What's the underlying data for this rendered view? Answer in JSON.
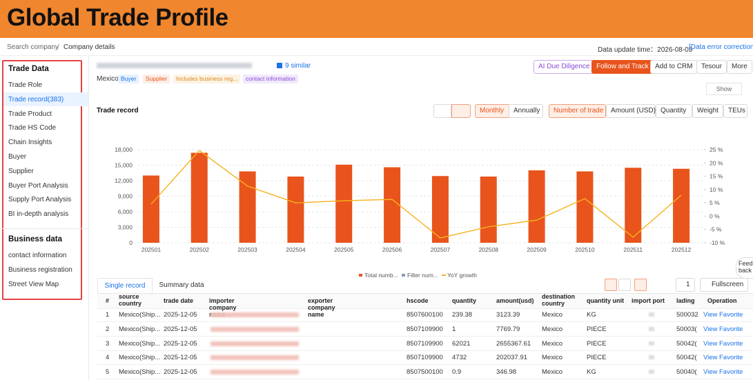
{
  "header": {
    "title": "Global Trade Profile"
  },
  "breadcrumb": [
    "Search company",
    "/",
    "Company details"
  ],
  "update": {
    "label": "Data update time：2026-08-05",
    "link": "[Data error correction]"
  },
  "sidebar": {
    "sections": [
      {
        "title": "Trade Data",
        "items": [
          "Trade Role",
          "Trade record(383)",
          "Trade Product",
          "Trade HS Code",
          "Chain Insights",
          "Buyer",
          "Supplier",
          "Buyer Port Analysis",
          "Supply Port Analysis",
          "BI in-depth analysis"
        ]
      },
      {
        "title": "Business data",
        "items": [
          "contact information",
          "Business registration",
          "Street View Map"
        ]
      }
    ]
  },
  "company": {
    "similar": "9 similar",
    "country": "Mexico",
    "tags": [
      "Buyer",
      "Supplier",
      "Includes business reg...",
      "contact information"
    ]
  },
  "actions": [
    "AI Due Diligence",
    "Follow and Track",
    "Add to CRM",
    "Tesour",
    "More"
  ],
  "show": "Show",
  "section_title": "Trade record",
  "period_toggle": [
    "Monthly",
    "Annually"
  ],
  "metric_toggle": [
    "Number of trade",
    "Amount (USD)",
    "Quantity",
    "Weight",
    "TEUs"
  ],
  "chart_data": {
    "type": "bar_line",
    "categories": [
      "202501",
      "202502",
      "202503",
      "202504",
      "202505",
      "202506",
      "202507",
      "202508",
      "202509",
      "202510",
      "202511",
      "202512"
    ],
    "series": [
      {
        "name": "Total numb...",
        "color": "#e8541c",
        "type": "bar",
        "values": [
          13000,
          17400,
          13800,
          12800,
          15100,
          14600,
          12900,
          12800,
          14000,
          13800,
          14500,
          14300
        ]
      },
      {
        "name": "Filter num...",
        "color": "#8a9bb5",
        "type": "bar",
        "values": [
          null,
          null,
          null,
          null,
          null,
          null,
          null,
          null,
          null,
          null,
          null,
          null
        ]
      },
      {
        "name": "YoY growth",
        "color": "#f5b21c",
        "type": "line",
        "axis": "y2",
        "values": [
          4.5,
          24.7,
          11.3,
          5,
          5.8,
          6.3,
          -8.2,
          -4,
          -1.5,
          6.6,
          -7.9,
          7.9
        ]
      }
    ],
    "ylim": [
      0,
      18000
    ],
    "yticks": [
      0,
      {
        "value": 3000,
        "label": "3,000"
      },
      {
        "value": 6000,
        "label": "6,000"
      },
      {
        "value": 9000,
        "label": "9,000"
      },
      {
        "value": 12000,
        "label": "12,000"
      },
      {
        "value": 15000,
        "label": "15,000"
      },
      {
        "value": 18000,
        "label": "18,000"
      }
    ],
    "y2lim": [
      -10,
      25
    ],
    "y2ticks": [
      {
        "value": -10,
        "label": "-10 %"
      },
      {
        "value": -5,
        "label": "-5 %"
      },
      {
        "value": 0,
        "label": "0 %"
      },
      {
        "value": 5,
        "label": "5 %"
      },
      {
        "value": 10,
        "label": "10 %"
      },
      {
        "value": 15,
        "label": "15 %"
      },
      {
        "value": 20,
        "label": "20 %"
      },
      {
        "value": 25,
        "label": "25 %"
      }
    ],
    "grid": true
  },
  "tabs": [
    "Single record",
    "Summary data"
  ],
  "table_tools": {
    "columns_count": "1",
    "fullscreen": "Fullscreen"
  },
  "feedback": "Feed back",
  "table": {
    "columns": [
      "#",
      "source country",
      "trade date",
      "importer company name",
      "exporter company name",
      "hscode",
      "quantity",
      "amount(usd)",
      "destination country",
      "quantity unit",
      "import port",
      "lading",
      "Operation"
    ],
    "rows": [
      [
        "1",
        "Mexico(Ship...",
        "2025-12-05",
        "8507600100",
        "239.38",
        "3123.39",
        "Mexico",
        "KG",
        "500032"
      ],
      [
        "2",
        "Mexico(Ship...",
        "2025-12-05",
        "8507109900",
        "1",
        "7769.79",
        "Mexico",
        "PIECE",
        "50003("
      ],
      [
        "3",
        "Mexico(Ship...",
        "2025-12-05",
        "8507109900",
        "62021",
        "2655367.61",
        "Mexico",
        "PIECE",
        "50042("
      ],
      [
        "4",
        "Mexico(Ship...",
        "2025-12-05",
        "8507109900",
        "4732",
        "202037.91",
        "Mexico",
        "PIECE",
        "50042("
      ],
      [
        "5",
        "Mexico(Ship...",
        "2025-12-05",
        "8507500100",
        "0.9",
        "346.98",
        "Mexico",
        "KG",
        "50040("
      ]
    ],
    "operations": [
      "View",
      "Favorite"
    ]
  }
}
